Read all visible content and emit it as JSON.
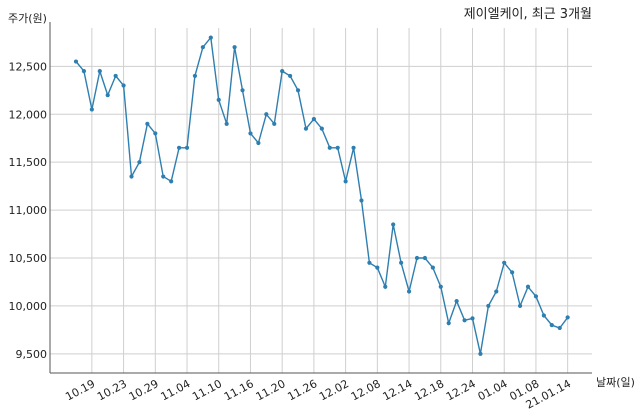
{
  "chart_data": {
    "type": "line",
    "title": "제이엘케이, 최근 3개월",
    "ylabel": "주가(원)",
    "xlabel": "날짜(일)",
    "ylim": [
      9300,
      12900
    ],
    "yticks": [
      9500,
      10000,
      10500,
      11000,
      11500,
      12000,
      12500
    ],
    "ytick_labels": [
      "9,500",
      "10,000",
      "10,500",
      "11,000",
      "11,500",
      "12,000",
      "12,500"
    ],
    "xticks": [
      {
        "index": 2,
        "label": "10.19"
      },
      {
        "index": 6,
        "label": "10.23"
      },
      {
        "index": 10,
        "label": "10.29"
      },
      {
        "index": 14,
        "label": "11.04"
      },
      {
        "index": 18,
        "label": "11.10"
      },
      {
        "index": 22,
        "label": "11.16"
      },
      {
        "index": 26,
        "label": "11.20"
      },
      {
        "index": 30,
        "label": "11.26"
      },
      {
        "index": 34,
        "label": "12.02"
      },
      {
        "index": 38,
        "label": "12.08"
      },
      {
        "index": 42,
        "label": "12.14"
      },
      {
        "index": 46,
        "label": "12.18"
      },
      {
        "index": 50,
        "label": "12.24"
      },
      {
        "index": 54,
        "label": "01.04"
      },
      {
        "index": 58,
        "label": "01.08"
      },
      {
        "index": 62,
        "label": "21.01.14"
      }
    ],
    "grid": true,
    "color": "#2e7fb0",
    "series": [
      {
        "values": [
          12550,
          12450,
          12050,
          12450,
          12200,
          12400,
          12300,
          11350,
          11500,
          11900,
          11800,
          11350,
          11300,
          11650,
          11650,
          12400,
          12700,
          12800,
          12150,
          11900,
          12700,
          12250,
          11800,
          11700,
          12000,
          11900,
          12450,
          12400,
          12250,
          11850,
          11950,
          11850,
          11650,
          11650,
          11300,
          11650,
          11100,
          10450,
          10400,
          10200,
          10850,
          10450,
          10150,
          10500,
          10500,
          10400,
          10200,
          9820,
          10050,
          9850,
          9870,
          9500,
          10000,
          10150,
          10450,
          10350,
          10000,
          10200,
          10100,
          9900,
          9800,
          9770,
          9880
        ]
      }
    ]
  }
}
